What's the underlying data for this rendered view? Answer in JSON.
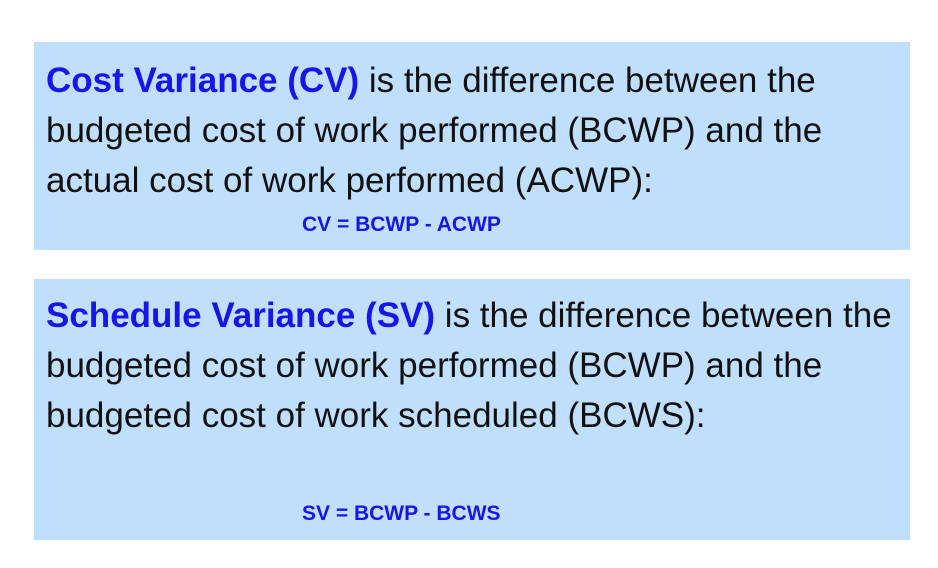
{
  "cv": {
    "term": "Cost Variance (CV)",
    "description": " is the difference between the budgeted cost of work performed (BCWP) and the actual cost of work performed (ACWP):",
    "formula": "CV = BCWP - ACWP"
  },
  "sv": {
    "term": "Schedule Variance (SV)",
    "description": " is the difference between the budgeted cost of work performed (BCWP) and the budgeted cost of work scheduled (BCWS):",
    "formula": "SV = BCWP - BCWS"
  },
  "colors": {
    "box_background": "#bfdffc",
    "term_blue": "#1616e6",
    "body_text": "#111111"
  }
}
